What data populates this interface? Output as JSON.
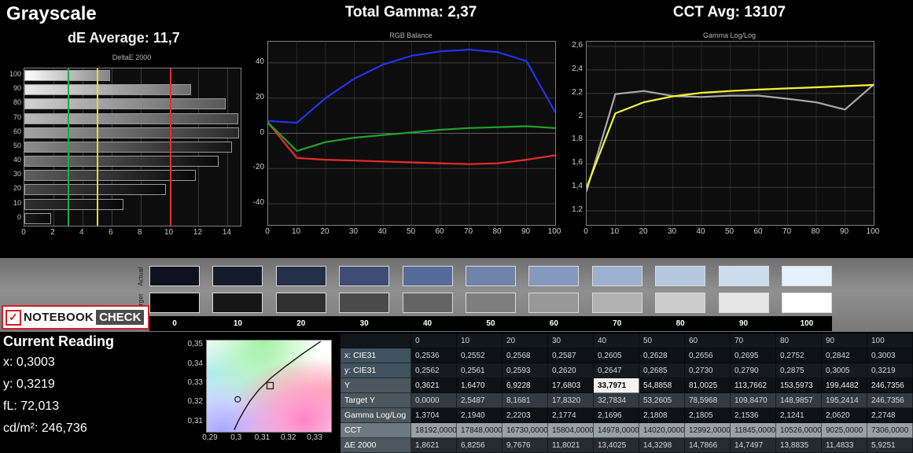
{
  "header": {
    "title": "Grayscale",
    "de_average": "dE Average: 11,7",
    "total_gamma": "Total Gamma: 2,37",
    "cct_avg": "CCT Avg: 13107"
  },
  "logo": {
    "check": "✓",
    "part1": "NOTEBOOK",
    "part2": "CHECK"
  },
  "current_reading": {
    "title": "Current Reading",
    "lines": [
      "x: 0,3003",
      "y: 0,3219",
      "fL: 72,013",
      "cd/m²: 246,736"
    ]
  },
  "chart_data": [
    {
      "type": "bar",
      "title": "DeltaE 2000",
      "orientation": "horizontal",
      "categories": [
        100,
        90,
        80,
        70,
        60,
        50,
        40,
        30,
        20,
        10,
        0
      ],
      "values": [
        5.9251,
        11.4833,
        13.8835,
        14.7497,
        14.7866,
        14.3298,
        13.4025,
        11.8021,
        9.7676,
        6.8256,
        1.8621
      ],
      "xlim": [
        0,
        14.9
      ],
      "x_ticks": [
        0,
        2,
        4,
        6,
        8,
        10,
        12,
        14
      ],
      "reference_lines": [
        {
          "value": 3,
          "color": "#1faa4a"
        },
        {
          "value": 5,
          "color": "#e8d93a"
        },
        {
          "value": 10,
          "color": "#e03030"
        }
      ]
    },
    {
      "type": "line",
      "title": "RGB Balance",
      "x": [
        0,
        10,
        20,
        30,
        40,
        50,
        60,
        70,
        80,
        90,
        100
      ],
      "x_ticks": [
        0,
        10,
        20,
        30,
        40,
        50,
        60,
        70,
        80,
        90,
        100
      ],
      "x_tick_labels": [
        "0",
        "10",
        "20",
        "30",
        "40",
        "50",
        "60",
        "70",
        "80",
        "90",
        "100"
      ],
      "ylim": [
        -52,
        52
      ],
      "y_ticks": [
        40,
        20,
        0,
        -20,
        -40
      ],
      "y_tick_labels": [
        "40",
        "20",
        "0",
        "-20",
        "-40"
      ],
      "series": [
        {
          "name": "red",
          "color": "#e82c2c",
          "values": [
            6,
            -14,
            -15,
            -15.5,
            -16,
            -16.5,
            -17,
            -17.5,
            -17,
            -15,
            -12.5
          ]
        },
        {
          "name": "green",
          "color": "#1fa32c",
          "values": [
            6,
            -10,
            -5,
            -2.5,
            -1,
            0.5,
            2,
            3,
            3.5,
            4,
            3
          ]
        },
        {
          "name": "blue",
          "color": "#2233ee",
          "values": [
            7,
            6,
            20,
            31,
            39,
            44,
            46.5,
            47.5,
            46,
            41,
            12
          ]
        }
      ]
    },
    {
      "type": "line",
      "title": "Gamma Log/Log",
      "x": [
        0,
        10,
        20,
        30,
        40,
        50,
        60,
        70,
        80,
        90,
        100
      ],
      "x_ticks": [
        0,
        10,
        20,
        30,
        40,
        50,
        60,
        70,
        80,
        90,
        100
      ],
      "x_tick_labels": [
        "0",
        "10",
        "20",
        "30",
        "40",
        "50",
        "60",
        "70",
        "80",
        "90",
        "100"
      ],
      "ylim": [
        1.08,
        2.64
      ],
      "y_ticks": [
        2.6,
        2.4,
        2.2,
        2.0,
        1.8,
        1.6,
        1.4,
        1.2
      ],
      "y_tick_labels": [
        "2,6",
        "2,4",
        "2,2",
        "2",
        "1,8",
        "1,6",
        "1,4",
        "1,2"
      ],
      "series": [
        {
          "name": "measured gamma",
          "color": "#a8a8a8",
          "values": [
            1.3704,
            2.194,
            2.2203,
            2.1774,
            2.1696,
            2.1808,
            2.1805,
            2.1536,
            2.1241,
            2.062,
            2.2748
          ]
        },
        {
          "name": "target gamma",
          "color": "#f5f533",
          "values": [
            1.4,
            2.03,
            2.125,
            2.175,
            2.205,
            2.22,
            2.232,
            2.242,
            2.252,
            2.262,
            2.272
          ]
        }
      ]
    },
    {
      "type": "scatter",
      "title": "CIE chromaticity",
      "xlim": [
        0.2885,
        0.336
      ],
      "ylim": [
        0.305,
        0.3525
      ],
      "x_ticks": [
        0.29,
        0.3,
        0.31,
        0.32,
        0.33
      ],
      "x_tick_labels": [
        "0,29",
        "0,3",
        "0,31",
        "0,32",
        "0,33"
      ],
      "y_ticks": [
        0.35,
        0.34,
        0.33,
        0.32,
        0.31
      ],
      "y_tick_labels": [
        "0,35",
        "0,34",
        "0,33",
        "0,32",
        "0,31"
      ],
      "locus": [
        [
          0.299,
          0.306
        ],
        [
          0.3005,
          0.3105
        ],
        [
          0.3025,
          0.3155
        ],
        [
          0.305,
          0.321
        ],
        [
          0.3085,
          0.327
        ],
        [
          0.313,
          0.333
        ],
        [
          0.3185,
          0.339
        ],
        [
          0.325,
          0.3455
        ],
        [
          0.332,
          0.352
        ]
      ],
      "measured": {
        "x": 0.3003,
        "y": 0.3219
      },
      "target": {
        "x": 0.3127,
        "y": 0.329
      }
    }
  ],
  "swatches": {
    "row_labels": [
      "Actual",
      "Target"
    ],
    "column_labels": [
      "0",
      "10",
      "20",
      "30",
      "40",
      "50",
      "60",
      "70",
      "80",
      "90",
      "100"
    ],
    "actual_colors": [
      "#0e1220",
      "#141b2b",
      "#25304b",
      "#3e4d73",
      "#566b99",
      "#6f83ab",
      "#8598bf",
      "#9cb0d0",
      "#b4c8e0",
      "#cdddef",
      "#e4f1fc"
    ],
    "target_colors": [
      "#000000",
      "#161616",
      "#303030",
      "#4a4a4a",
      "#646464",
      "#7e7e7e",
      "#989898",
      "#b2b2b2",
      "#cccccc",
      "#e6e6e6",
      "#ffffff"
    ]
  },
  "table": {
    "columns": [
      "0",
      "10",
      "20",
      "30",
      "40",
      "50",
      "60",
      "70",
      "80",
      "90",
      "100"
    ],
    "rows": [
      {
        "label": "x: CIE31",
        "values": [
          "0,2536",
          "0,2552",
          "0,2568",
          "0,2587",
          "0,2605",
          "0,2628",
          "0,2656",
          "0,2695",
          "0,2752",
          "0,2842",
          "0,3003"
        ]
      },
      {
        "label": "y: CIE31",
        "values": [
          "0,2562",
          "0,2561",
          "0,2593",
          "0,2620",
          "0,2647",
          "0,2685",
          "0,2730",
          "0,2790",
          "0,2875",
          "0,3005",
          "0,3219"
        ]
      },
      {
        "label": "Y",
        "highlight_index": 4,
        "values": [
          "0,3621",
          "1,6470",
          "6,9228",
          "17,6803",
          "33,7971",
          "54,8858",
          "81,0025",
          "113,7662",
          "153,5973",
          "199,4482",
          "246,7356"
        ]
      },
      {
        "label": "Target Y",
        "values": [
          "0,0000",
          "2,5487",
          "8,1681",
          "17,8320",
          "32,7834",
          "53,2605",
          "78,5968",
          "109,8470",
          "148,9857",
          "195,2414",
          "246,7356"
        ]
      },
      {
        "label": "Gamma Log/Log",
        "values": [
          "1,3704",
          "2,1940",
          "2,2203",
          "2,1774",
          "2,1696",
          "2,1808",
          "2,1805",
          "2,1536",
          "2,1241",
          "2,0620",
          "2,2748"
        ]
      },
      {
        "label": "CCT",
        "values": [
          "18192,0000",
          "17848,0000",
          "16730,0000",
          "15804,0000",
          "14978,0000",
          "14020,0000",
          "12992,0000",
          "11845,0000",
          "10526,0000",
          "9025,0000",
          "7306,0000"
        ]
      },
      {
        "label": "ΔE 2000",
        "values": [
          "1,8621",
          "6,8256",
          "9,7676",
          "11,8021",
          "13,4025",
          "14,3298",
          "14,7866",
          "14,7497",
          "13,8835",
          "11,4833",
          "5,9251"
        ]
      }
    ]
  }
}
